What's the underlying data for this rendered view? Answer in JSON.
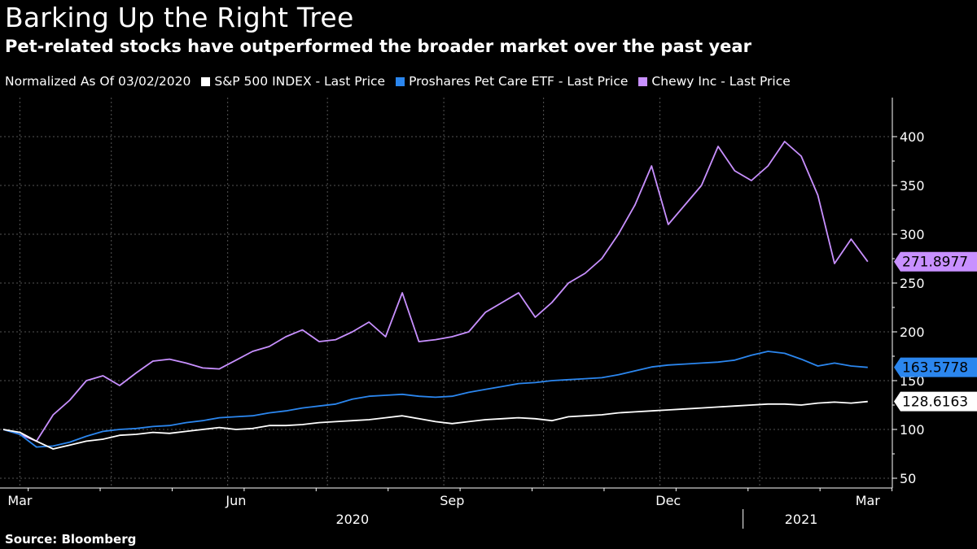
{
  "title": "Barking Up the Right Tree",
  "subtitle": "Pet-related stocks have outperformed the broader market over the past year",
  "source": "Source: Bloomberg",
  "colors": {
    "sp500": "#ffffff",
    "petcare": "#2b86ee",
    "chewy": "#c890ff",
    "grid": "#555555"
  },
  "chart_data": {
    "type": "line",
    "title": "Barking Up the Right Tree",
    "subtitle": "Pet-related stocks have outperformed the broader market over the past year",
    "normalization_label": "Normalized As Of 03/02/2020",
    "x": [
      0,
      1,
      2,
      3,
      4,
      5,
      6,
      7,
      8,
      9,
      10,
      11,
      12,
      13,
      14,
      15,
      16,
      17,
      18,
      19,
      20,
      21,
      22,
      23,
      24,
      25,
      26,
      27,
      28,
      29,
      30,
      31,
      32,
      33,
      34,
      35,
      36,
      37,
      38,
      39,
      40,
      41,
      42,
      43,
      44,
      45,
      46,
      47,
      48,
      49,
      50,
      51,
      52
    ],
    "x_unit": "weeks since 03/02/2020",
    "ylim": [
      40,
      440
    ],
    "yticks": [
      50,
      100,
      150,
      200,
      250,
      300,
      350,
      400
    ],
    "x_tick_labels": [
      {
        "label": "Mar",
        "week": 1
      },
      {
        "label": "Jun",
        "week": 14
      },
      {
        "label": "Sep",
        "week": 27
      },
      {
        "label": "Dec",
        "week": 40
      },
      {
        "label": "Mar",
        "week": 52
      }
    ],
    "year_labels": [
      {
        "label": "2020",
        "week": 21
      },
      {
        "label": "2021",
        "week": 48
      }
    ],
    "series": [
      {
        "key": "sp500",
        "name": "S&P 500 INDEX - Last Price",
        "last_label": "128.6163",
        "values": [
          100,
          97,
          88,
          80,
          84,
          88,
          90,
          94,
          95,
          97,
          96,
          98,
          100,
          102,
          100,
          101,
          104,
          104,
          105,
          107,
          108,
          109,
          110,
          112,
          114,
          111,
          108,
          106,
          108,
          110,
          111,
          112,
          111,
          109,
          113,
          114,
          115,
          117,
          118,
          119,
          120,
          121,
          122,
          123,
          124,
          125,
          126,
          126,
          125,
          127,
          128,
          127,
          128.6
        ]
      },
      {
        "key": "petcare",
        "name": "Proshares Pet Care ETF - Last Price",
        "last_label": "163.5778",
        "values": [
          100,
          95,
          82,
          83,
          87,
          93,
          98,
          100,
          101,
          103,
          104,
          107,
          109,
          112,
          113,
          114,
          117,
          119,
          122,
          124,
          126,
          131,
          134,
          135,
          136,
          134,
          133,
          134,
          138,
          141,
          144,
          147,
          148,
          150,
          151,
          152,
          153,
          156,
          160,
          164,
          166,
          167,
          168,
          169,
          171,
          176,
          180,
          178,
          172,
          165,
          168,
          165,
          163.6
        ]
      },
      {
        "key": "chewy",
        "name": "Chewy Inc - Last Price",
        "last_label": "271.8977",
        "values": [
          100,
          95,
          88,
          115,
          130,
          150,
          155,
          145,
          158,
          170,
          172,
          168,
          163,
          162,
          171,
          180,
          185,
          195,
          202,
          190,
          192,
          200,
          210,
          195,
          240,
          190,
          192,
          195,
          200,
          220,
          230,
          240,
          215,
          230,
          250,
          260,
          275,
          300,
          330,
          370,
          310,
          330,
          350,
          390,
          365,
          355,
          370,
          395,
          380,
          340,
          270,
          295,
          271.9
        ]
      }
    ]
  }
}
